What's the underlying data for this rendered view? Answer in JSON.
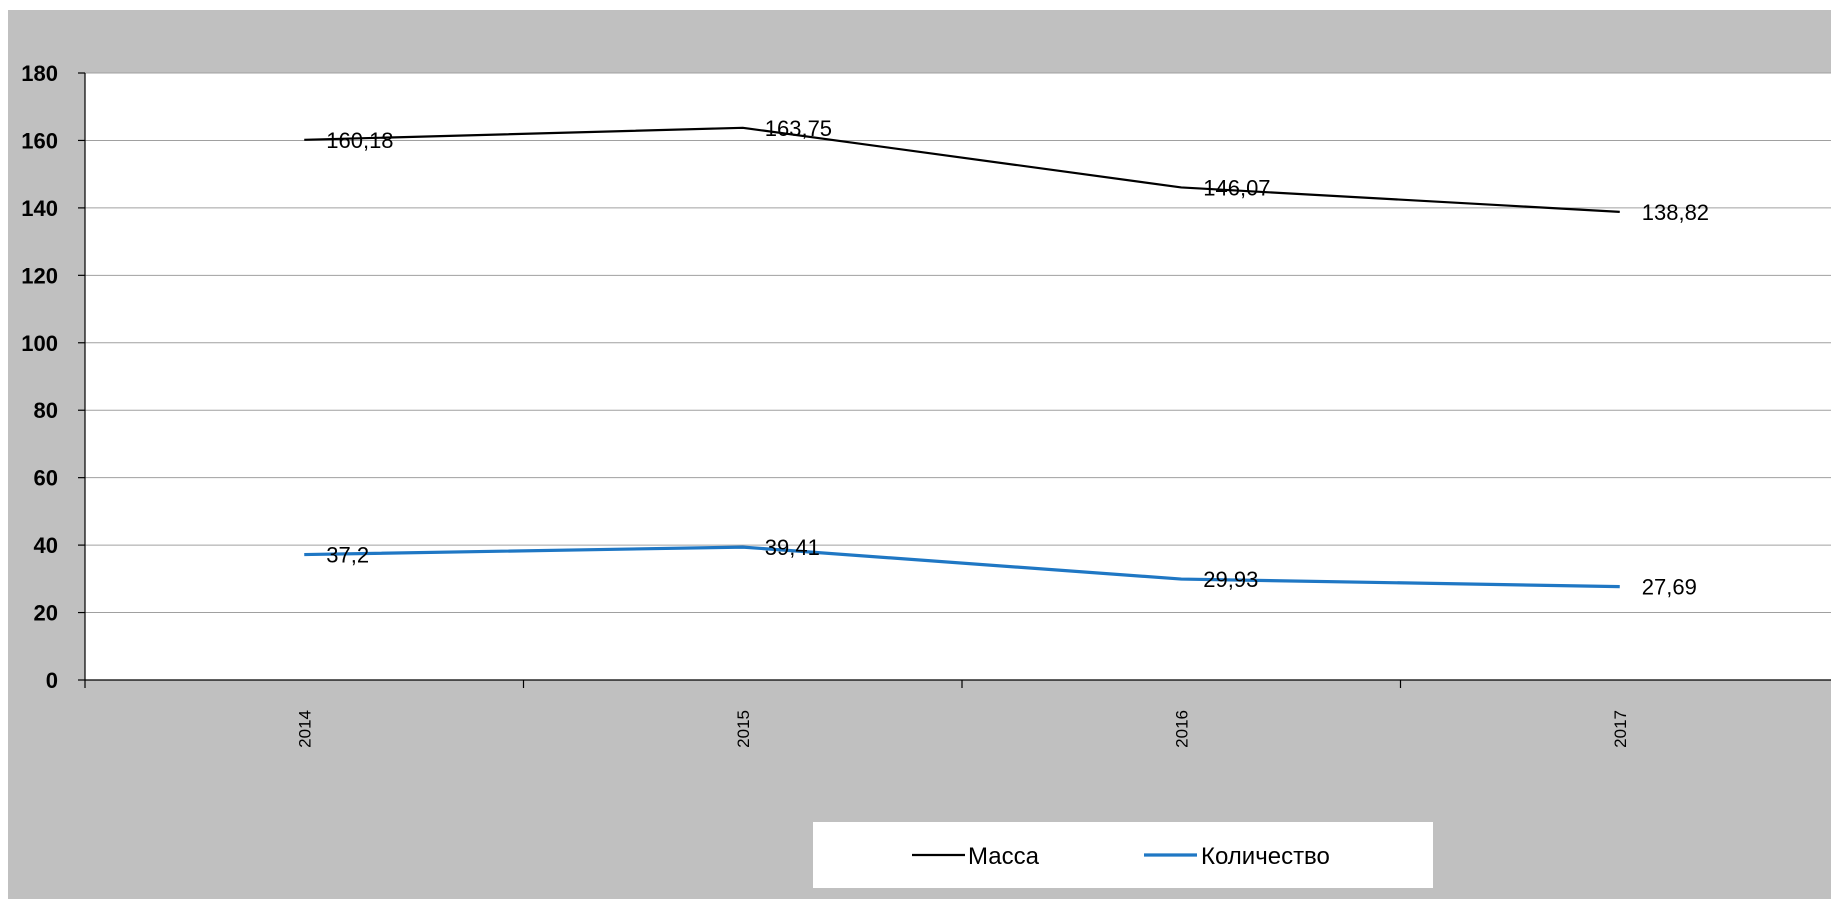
{
  "chart_data": {
    "type": "line",
    "title": "",
    "xlabel": "",
    "ylabel": "",
    "categories": [
      "2014",
      "2015",
      "2016",
      "2017"
    ],
    "ylim": [
      0,
      180
    ],
    "yticks": [
      0,
      20,
      40,
      60,
      80,
      100,
      120,
      140,
      160,
      180
    ],
    "ytick_labels": [
      "0",
      "20",
      "40",
      "60",
      "80",
      "100",
      "120",
      "140",
      "160",
      "180"
    ],
    "grid": true,
    "legend_position": "bottom",
    "series": [
      {
        "name": "Масса",
        "values": [
          160.18,
          163.75,
          146.07,
          138.82
        ],
        "labels": [
          "160,18",
          "163,75",
          "146,07",
          "138,82"
        ],
        "color": "#000000"
      },
      {
        "name": "Количество",
        "values": [
          37.2,
          39.41,
          29.93,
          27.69
        ],
        "labels": [
          "37,2",
          "39,41",
          "29,93",
          "27,69"
        ],
        "color": "#1f77c4"
      }
    ]
  },
  "colors": {
    "outer_background": "#c0c0c0",
    "plot_background": "#ffffff",
    "gridline": "#a0a0a0",
    "axis": "#000000",
    "legend_background": "#ffffff"
  }
}
